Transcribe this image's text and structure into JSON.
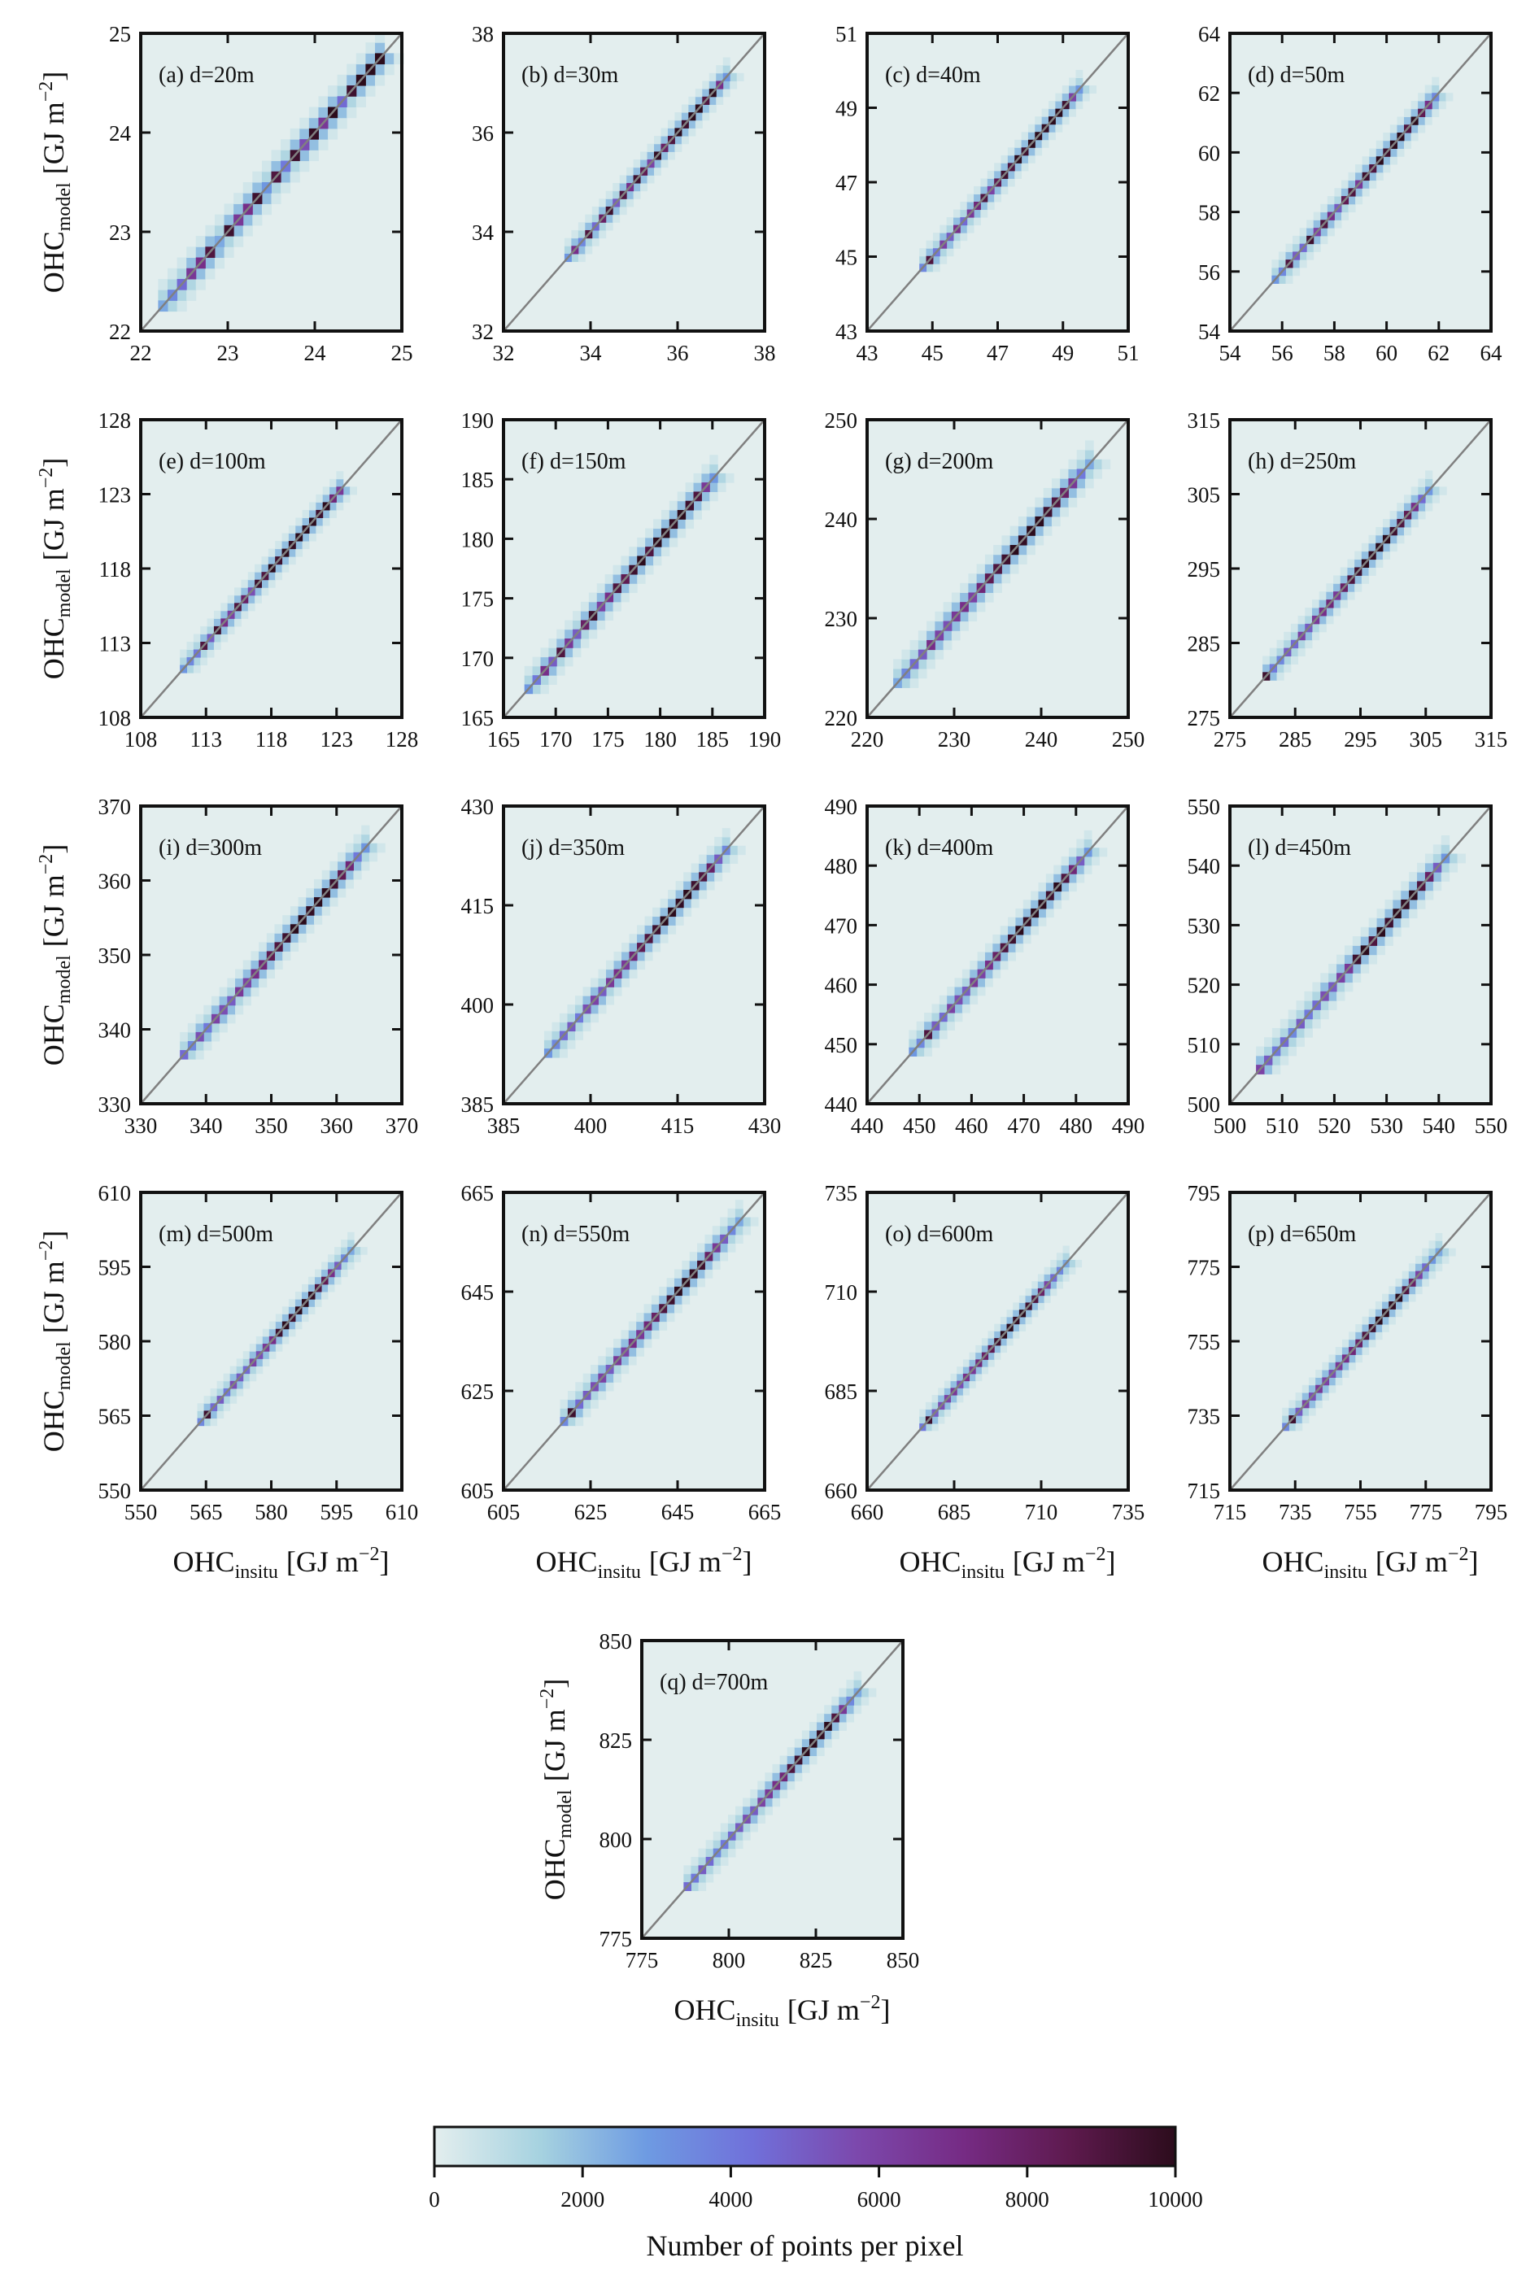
{
  "chart_data": {
    "type": "heatmap",
    "xlabel": {
      "base": "OHC",
      "sub": "insitu",
      "unit": "[GJ m",
      "sup": "−2",
      "close": "]"
    },
    "ylabel": {
      "base": "OHC",
      "sub": "model",
      "unit": "[GJ m",
      "sup": "−2",
      "close": "]"
    },
    "colorbar": {
      "label": "Number of points per pixel",
      "range": [
        0,
        10000
      ],
      "ticks": [
        "0",
        "2000",
        "4000",
        "6000",
        "8000",
        "10000"
      ],
      "stops": [
        "#e3eeee",
        "#a6d2e0",
        "#6e9be2",
        "#7070da",
        "#7c48ac",
        "#762b84",
        "#5e1a4e",
        "#2c0c1c"
      ]
    },
    "background": "#e3eeee",
    "one_to_one_line_color": "#808080",
    "off_diagonal_typical_count": 1200,
    "panels": [
      {
        "label": "(a) d=20m",
        "lim": [
          22,
          25
        ],
        "ticks": [
          "22",
          "23",
          "24",
          "25"
        ],
        "data_start": 22.2,
        "data_end": 24.8,
        "diag": [
          2500,
          3500,
          4500,
          6500,
          7000,
          9000,
          2500,
          9500,
          6500,
          7000,
          9500,
          3000,
          9000,
          4000,
          9500,
          5500,
          9800,
          6500,
          10000,
          4500,
          9500,
          10000,
          10000,
          10000
        ]
      },
      {
        "label": "(b) d=30m",
        "lim": [
          32,
          38
        ],
        "ticks": [
          "32",
          "34",
          "36",
          "38"
        ],
        "data_start": 33.4,
        "data_end": 37.2,
        "diag": [
          3000,
          7000,
          3500,
          9000,
          4500,
          8000,
          9500,
          5000,
          9000,
          7000,
          9500,
          8500,
          6000,
          9800,
          8000,
          9000,
          10000,
          9500,
          10000,
          10000,
          9000,
          10000,
          7000,
          3000
        ]
      },
      {
        "label": "(c) d=40m",
        "lim": [
          43,
          51
        ],
        "ticks": [
          "43",
          "45",
          "47",
          "49",
          "51"
        ],
        "data_start": 44.6,
        "data_end": 49.6,
        "diag": [
          3500,
          9000,
          4000,
          6000,
          5000,
          7000,
          4500,
          6500,
          7500,
          9000,
          6000,
          8500,
          9500,
          9000,
          10000,
          9500,
          10000,
          10000,
          9800,
          10000,
          10000,
          9500,
          6000,
          3000
        ]
      },
      {
        "label": "(d) d=50m",
        "lim": [
          54,
          64
        ],
        "ticks": [
          "54",
          "56",
          "58",
          "60",
          "62",
          "64"
        ],
        "data_start": 55.6,
        "data_end": 62.0,
        "diag": [
          3000,
          3500,
          9000,
          5000,
          4500,
          9500,
          6000,
          9000,
          7000,
          5000,
          8500,
          9000,
          6500,
          9500,
          9000,
          10000,
          9500,
          10000,
          10000,
          9000,
          10000,
          8500,
          7000,
          3500
        ]
      },
      {
        "label": "(e) d=100m",
        "lim": [
          108,
          128
        ],
        "ticks": [
          "108",
          "113",
          "118",
          "123",
          "128"
        ],
        "data_start": 111,
        "data_end": 123.5,
        "diag": [
          3000,
          3500,
          4000,
          9000,
          5000,
          9500,
          7000,
          6000,
          9000,
          8000,
          5500,
          9500,
          9000,
          10000,
          9500,
          10000,
          9800,
          10000,
          10000,
          10000,
          9500,
          10000,
          7500,
          6500
        ]
      },
      {
        "label": "(f) d=150m",
        "lim": [
          165,
          190
        ],
        "ticks": [
          "165",
          "170",
          "175",
          "180",
          "185",
          "190"
        ],
        "data_start": 167,
        "data_end": 185.5,
        "diag": [
          3000,
          4000,
          7000,
          5000,
          9000,
          6500,
          5000,
          8000,
          9500,
          6000,
          7000,
          9000,
          8500,
          9500,
          10000,
          9000,
          10000,
          10000,
          9800,
          10000,
          9500,
          9000,
          6500,
          3000
        ]
      },
      {
        "label": "(g) d=200m",
        "lim": [
          220,
          250
        ],
        "ticks": [
          "220",
          "230",
          "240",
          "250"
        ],
        "data_start": 223,
        "data_end": 246,
        "diag": [
          2500,
          3500,
          4500,
          5000,
          7000,
          6000,
          5500,
          6500,
          7000,
          6000,
          7500,
          8500,
          9000,
          9500,
          10000,
          9800,
          10000,
          10000,
          9500,
          9000,
          8000,
          6500,
          4000,
          2500
        ]
      },
      {
        "label": "(h) d=250m",
        "lim": [
          275,
          315
        ],
        "ticks": [
          "275",
          "285",
          "295",
          "305",
          "315"
        ],
        "data_start": 280,
        "data_end": 306,
        "diag": [
          9500,
          4000,
          3500,
          5000,
          4500,
          6000,
          5000,
          6500,
          7000,
          7500,
          6500,
          8000,
          9000,
          9500,
          10000,
          9800,
          10000,
          10000,
          9500,
          9000,
          8500,
          7000,
          4500,
          3000
        ]
      },
      {
        "label": "(i) d=300m",
        "lim": [
          330,
          370
        ],
        "ticks": [
          "330",
          "340",
          "350",
          "360",
          "370"
        ],
        "data_start": 336,
        "data_end": 365,
        "diag": [
          4500,
          3500,
          5500,
          4000,
          6000,
          5500,
          5000,
          6500,
          6000,
          7000,
          7500,
          8500,
          9000,
          9500,
          10000,
          10000,
          9800,
          10000,
          10000,
          9500,
          8500,
          7500,
          4000,
          3000
        ]
      },
      {
        "label": "(j) d=350m",
        "lim": [
          385,
          430
        ],
        "ticks": [
          "385",
          "400",
          "415",
          "430"
        ],
        "data_start": 392,
        "data_end": 424,
        "diag": [
          3000,
          3500,
          4500,
          5000,
          4000,
          5500,
          6000,
          5000,
          6500,
          7000,
          6500,
          7500,
          8500,
          9000,
          9500,
          10000,
          10000,
          9800,
          10000,
          9500,
          9000,
          8000,
          5000,
          3500
        ]
      },
      {
        "label": "(k) d=400m",
        "lim": [
          440,
          490
        ],
        "ticks": [
          "440",
          "450",
          "460",
          "470",
          "480",
          "490"
        ],
        "data_start": 448,
        "data_end": 483,
        "diag": [
          3000,
          3500,
          9000,
          5000,
          4500,
          6000,
          5500,
          5000,
          6500,
          6000,
          7000,
          8000,
          9000,
          9500,
          10000,
          9800,
          10000,
          10000,
          9500,
          10000,
          9000,
          7500,
          5000,
          3000
        ]
      },
      {
        "label": "(l) d=450m",
        "lim": [
          500,
          550
        ],
        "ticks": [
          "500",
          "510",
          "520",
          "530",
          "540",
          "550"
        ],
        "data_start": 505,
        "data_end": 542,
        "diag": [
          6000,
          5000,
          4000,
          4500,
          3500,
          5000,
          4000,
          4500,
          5500,
          5000,
          6000,
          6500,
          9500,
          10000,
          9000,
          10000,
          9500,
          10000,
          9800,
          10000,
          9000,
          8000,
          5000,
          3000
        ]
      },
      {
        "label": "(m) d=500m",
        "lim": [
          550,
          610
        ],
        "ticks": [
          "550",
          "565",
          "580",
          "595",
          "610"
        ],
        "data_start": 563,
        "data_end": 599,
        "diag": [
          3500,
          9500,
          4500,
          5000,
          4000,
          5500,
          5000,
          4500,
          6000,
          5500,
          6500,
          7000,
          9500,
          10000,
          9500,
          10000,
          10000,
          9800,
          9000,
          8500,
          7000,
          5000,
          3500,
          2500
        ]
      },
      {
        "label": "(n) d=550m",
        "lim": [
          605,
          665
        ],
        "ticks": [
          "605",
          "625",
          "645",
          "665"
        ],
        "data_start": 618,
        "data_end": 660,
        "diag": [
          3500,
          9500,
          4500,
          5000,
          5500,
          6000,
          5000,
          6500,
          6000,
          7000,
          6500,
          7500,
          8000,
          9000,
          9500,
          10000,
          10000,
          9800,
          9500,
          8000,
          6500,
          5000,
          3500,
          2500
        ]
      },
      {
        "label": "(o) d=600m",
        "lim": [
          660,
          735
        ],
        "ticks": [
          "660",
          "685",
          "710",
          "735"
        ],
        "data_start": 675,
        "data_end": 718,
        "diag": [
          4000,
          9500,
          5000,
          5500,
          6000,
          6500,
          5500,
          7000,
          6500,
          7500,
          8000,
          8500,
          9500,
          10000,
          10000,
          9800,
          10000,
          9500,
          9000,
          8000,
          6000,
          4500,
          3500,
          2500
        ]
      },
      {
        "label": "(p) d=650m",
        "lim": [
          715,
          795
        ],
        "ticks": [
          "715",
          "735",
          "755",
          "775",
          "795"
        ],
        "data_start": 731,
        "data_end": 780,
        "diag": [
          3500,
          9500,
          5000,
          6000,
          5500,
          6500,
          6000,
          5500,
          6500,
          7000,
          7500,
          8000,
          9000,
          9500,
          10000,
          10000,
          9800,
          10000,
          9000,
          8000,
          6000,
          4500,
          3000,
          2500
        ]
      },
      {
        "label": "(q) d=700m",
        "lim": [
          775,
          850
        ],
        "ticks": [
          "775",
          "800",
          "825",
          "850"
        ],
        "data_start": 787,
        "data_end": 838,
        "diag": [
          4500,
          4000,
          5000,
          4500,
          3500,
          4000,
          4500,
          5000,
          5500,
          5000,
          6000,
          6500,
          7000,
          7500,
          9000,
          9500,
          10000,
          10000,
          9800,
          10000,
          9000,
          6500,
          3500,
          2500
        ]
      }
    ]
  }
}
